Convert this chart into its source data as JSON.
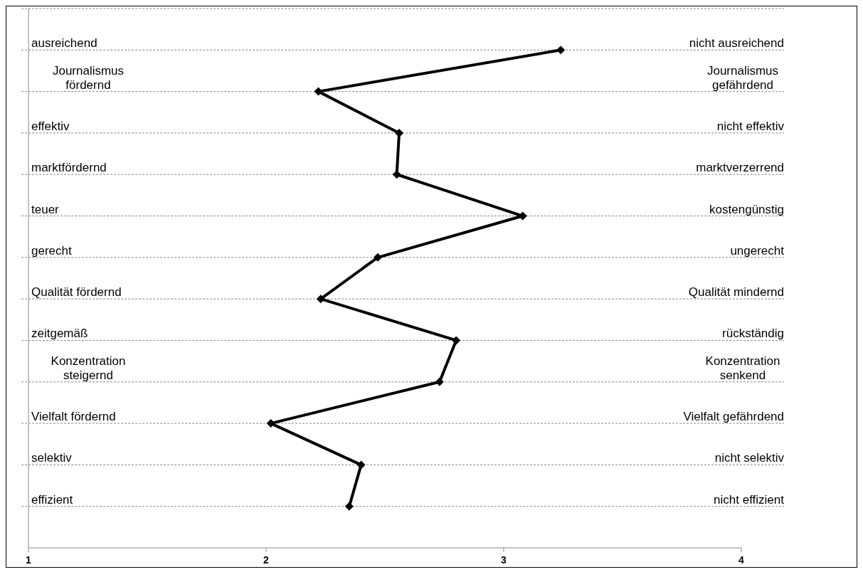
{
  "chart_data": {
    "type": "line",
    "orientation": "horizontal",
    "categories": [
      "ausreichend",
      "Journalismus fördernd",
      "effektiv",
      "marktfördernd",
      "teuer",
      "gerecht",
      "Qualität fördernd",
      "zeitgemäß",
      "Konzentration steigernd",
      "Vielfalt fördernd",
      "selektiv",
      "effizient"
    ],
    "annotations": [
      "nicht ausreichend",
      "Journalismus gefährdend",
      "nicht effektiv",
      "marktverzerrend",
      "kostengünstig",
      "ungerecht",
      "Qualität mindernd",
      "rückständig",
      "Konzentration senkend",
      "Vielfalt gefährdend",
      "nicht selektiv",
      "nicht effizient"
    ],
    "series": [
      {
        "color": "#000000",
        "values": [
          3.24,
          2.22,
          2.56,
          2.55,
          3.08,
          2.47,
          2.23,
          2.8,
          2.73,
          2.02,
          2.4,
          2.35
        ]
      }
    ],
    "xlim": [
      1,
      4
    ],
    "xticks": [
      1,
      2,
      3,
      4
    ],
    "grid": "y",
    "marker": "diamond",
    "line_style": "solid"
  }
}
